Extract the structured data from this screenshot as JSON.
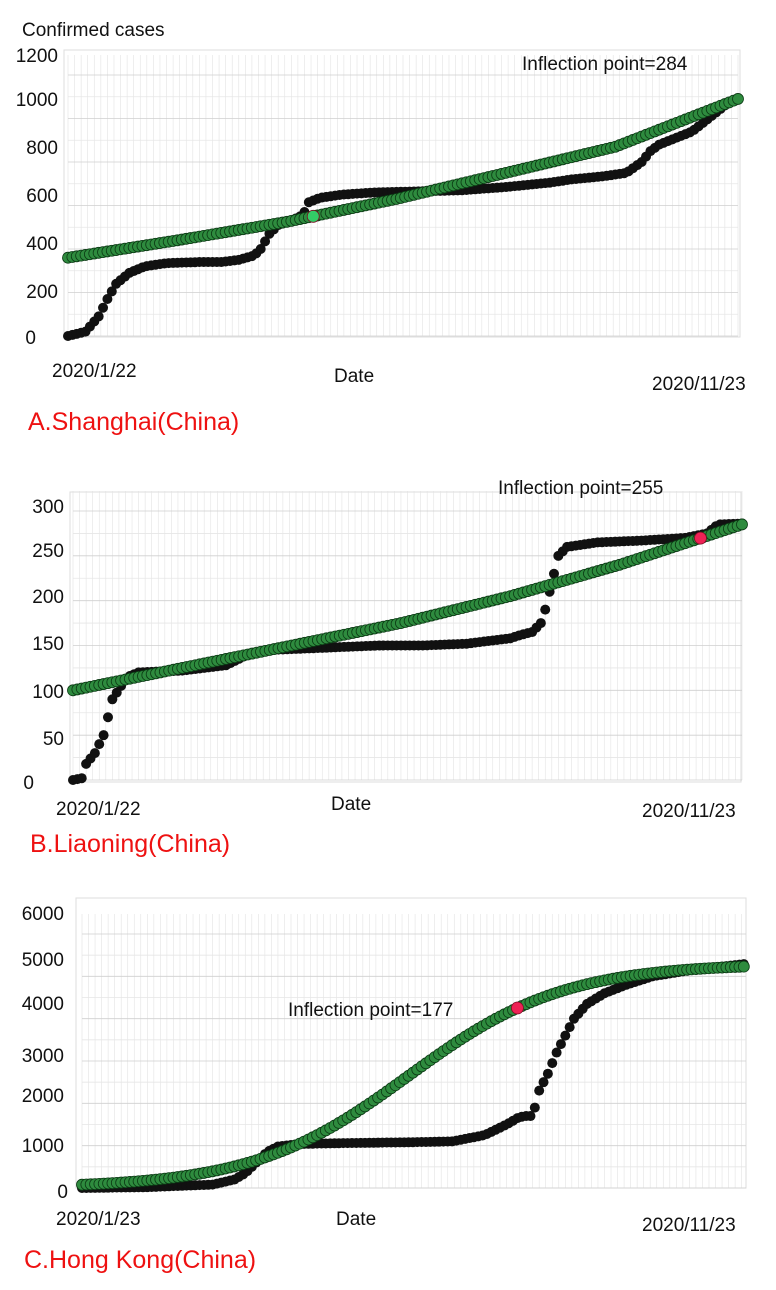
{
  "chart_data": [
    {
      "type": "scatter",
      "title": "A.Shanghai(China)",
      "ylabel": "Confirmed cases",
      "xlabel": "Date",
      "x_start_label": "2020/1/22",
      "x_end_label": "2020/11/23",
      "annotation": "Inflection point=284",
      "ylim": [
        0,
        1200
      ],
      "yticks": [
        0,
        200,
        400,
        600,
        800,
        1000,
        1200
      ],
      "x_points": 307,
      "grid": true,
      "special_point_color": "#33cc66",
      "special_point_day": 112,
      "series": [
        {
          "color": "#111111",
          "points": [
            [
              0,
              0
            ],
            [
              8,
              20
            ],
            [
              14,
              90
            ],
            [
              18,
              170
            ],
            [
              22,
              240
            ],
            [
              28,
              290
            ],
            [
              35,
              320
            ],
            [
              45,
              335
            ],
            [
              60,
              340
            ],
            [
              70,
              340
            ],
            [
              78,
              350
            ],
            [
              85,
              370
            ],
            [
              88,
              400
            ],
            [
              92,
              470
            ],
            [
              96,
              510
            ],
            [
              102,
              530
            ],
            [
              106,
              550
            ],
            [
              108,
              570
            ],
            [
              110,
              615
            ],
            [
              115,
              635
            ],
            [
              125,
              650
            ],
            [
              140,
              660
            ],
            [
              160,
              665
            ],
            [
              180,
              670
            ],
            [
              200,
              685
            ],
            [
              220,
              705
            ],
            [
              230,
              720
            ],
            [
              245,
              735
            ],
            [
              255,
              750
            ],
            [
              262,
              800
            ],
            [
              266,
              850
            ],
            [
              270,
              880
            ],
            [
              285,
              940
            ],
            [
              300,
              1060
            ],
            [
              306,
              1090
            ]
          ]
        },
        {
          "color": "#0f6b23",
          "points": [
            [
              0,
              360
            ],
            [
              50,
              440
            ],
            [
              100,
              525
            ],
            [
              150,
              630
            ],
            [
              200,
              750
            ],
            [
              250,
              870
            ],
            [
              306,
              1090
            ]
          ]
        }
      ]
    },
    {
      "type": "scatter",
      "title": "B.Liaoning(China)",
      "xlabel": "Date",
      "x_start_label": "2020/1/22",
      "x_end_label": "2020/11/23",
      "annotation": "Inflection point=255",
      "ylim": [
        0,
        300
      ],
      "yticks": [
        0,
        50,
        100,
        150,
        200,
        250,
        300
      ],
      "x_points": 307,
      "grid": true,
      "special_point_color": "#ee2255",
      "special_point_day": 287,
      "series": [
        {
          "color": "#111111",
          "points": [
            [
              0,
              0
            ],
            [
              4,
              2
            ],
            [
              6,
              18
            ],
            [
              10,
              30
            ],
            [
              14,
              50
            ],
            [
              18,
              90
            ],
            [
              22,
              105
            ],
            [
              25,
              115
            ],
            [
              30,
              120
            ],
            [
              50,
              122
            ],
            [
              70,
              128
            ],
            [
              75,
              134
            ],
            [
              80,
              140
            ],
            [
              90,
              145
            ],
            [
              110,
              147
            ],
            [
              120,
              148
            ],
            [
              140,
              150
            ],
            [
              160,
              150
            ],
            [
              180,
              152
            ],
            [
              190,
              155
            ],
            [
              200,
              158
            ],
            [
              205,
              162
            ],
            [
              210,
              165
            ],
            [
              214,
              175
            ],
            [
              216,
              190
            ],
            [
              218,
              210
            ],
            [
              220,
              230
            ],
            [
              222,
              250
            ],
            [
              226,
              260
            ],
            [
              240,
              265
            ],
            [
              260,
              267
            ],
            [
              280,
              270
            ],
            [
              290,
              275
            ],
            [
              295,
              285
            ],
            [
              306,
              286
            ]
          ]
        },
        {
          "color": "#0f6b23",
          "points": [
            [
              0,
              100
            ],
            [
              50,
              125
            ],
            [
              100,
              150
            ],
            [
              150,
              175
            ],
            [
              200,
              205
            ],
            [
              250,
              240
            ],
            [
              306,
              285
            ]
          ]
        }
      ]
    },
    {
      "type": "scatter",
      "title": "C.Hong Kong(China)",
      "xlabel": "Date",
      "x_start_label": "2020/1/23",
      "x_end_label": "2020/11/23",
      "annotation": "Inflection point=177",
      "ylim": [
        0,
        6000
      ],
      "yticks": [
        0,
        1000,
        2000,
        3000,
        4000,
        5000,
        6000
      ],
      "x_points": 306,
      "grid": true,
      "special_point_color": "#ee2255",
      "special_point_day": 200,
      "series": [
        {
          "color": "#111111",
          "points": [
            [
              0,
              0
            ],
            [
              30,
              20
            ],
            [
              60,
              80
            ],
            [
              70,
              200
            ],
            [
              75,
              350
            ],
            [
              80,
              600
            ],
            [
              85,
              850
            ],
            [
              90,
              980
            ],
            [
              100,
              1040
            ],
            [
              120,
              1060
            ],
            [
              150,
              1080
            ],
            [
              170,
              1100
            ],
            [
              185,
              1250
            ],
            [
              195,
              1500
            ],
            [
              200,
              1650
            ],
            [
              203,
              1700
            ],
            [
              206,
              1700
            ],
            [
              208,
              1900
            ],
            [
              210,
              2300
            ],
            [
              214,
              2700
            ],
            [
              218,
              3200
            ],
            [
              222,
              3600
            ],
            [
              226,
              4000
            ],
            [
              232,
              4350
            ],
            [
              240,
              4600
            ],
            [
              250,
              4800
            ],
            [
              262,
              5000
            ],
            [
              280,
              5150
            ],
            [
              306,
              5300
            ]
          ]
        },
        {
          "color": "#0f6b23",
          "logistic": {
            "K": 5300,
            "r": 0.028,
            "x0": 150
          }
        }
      ]
    }
  ]
}
